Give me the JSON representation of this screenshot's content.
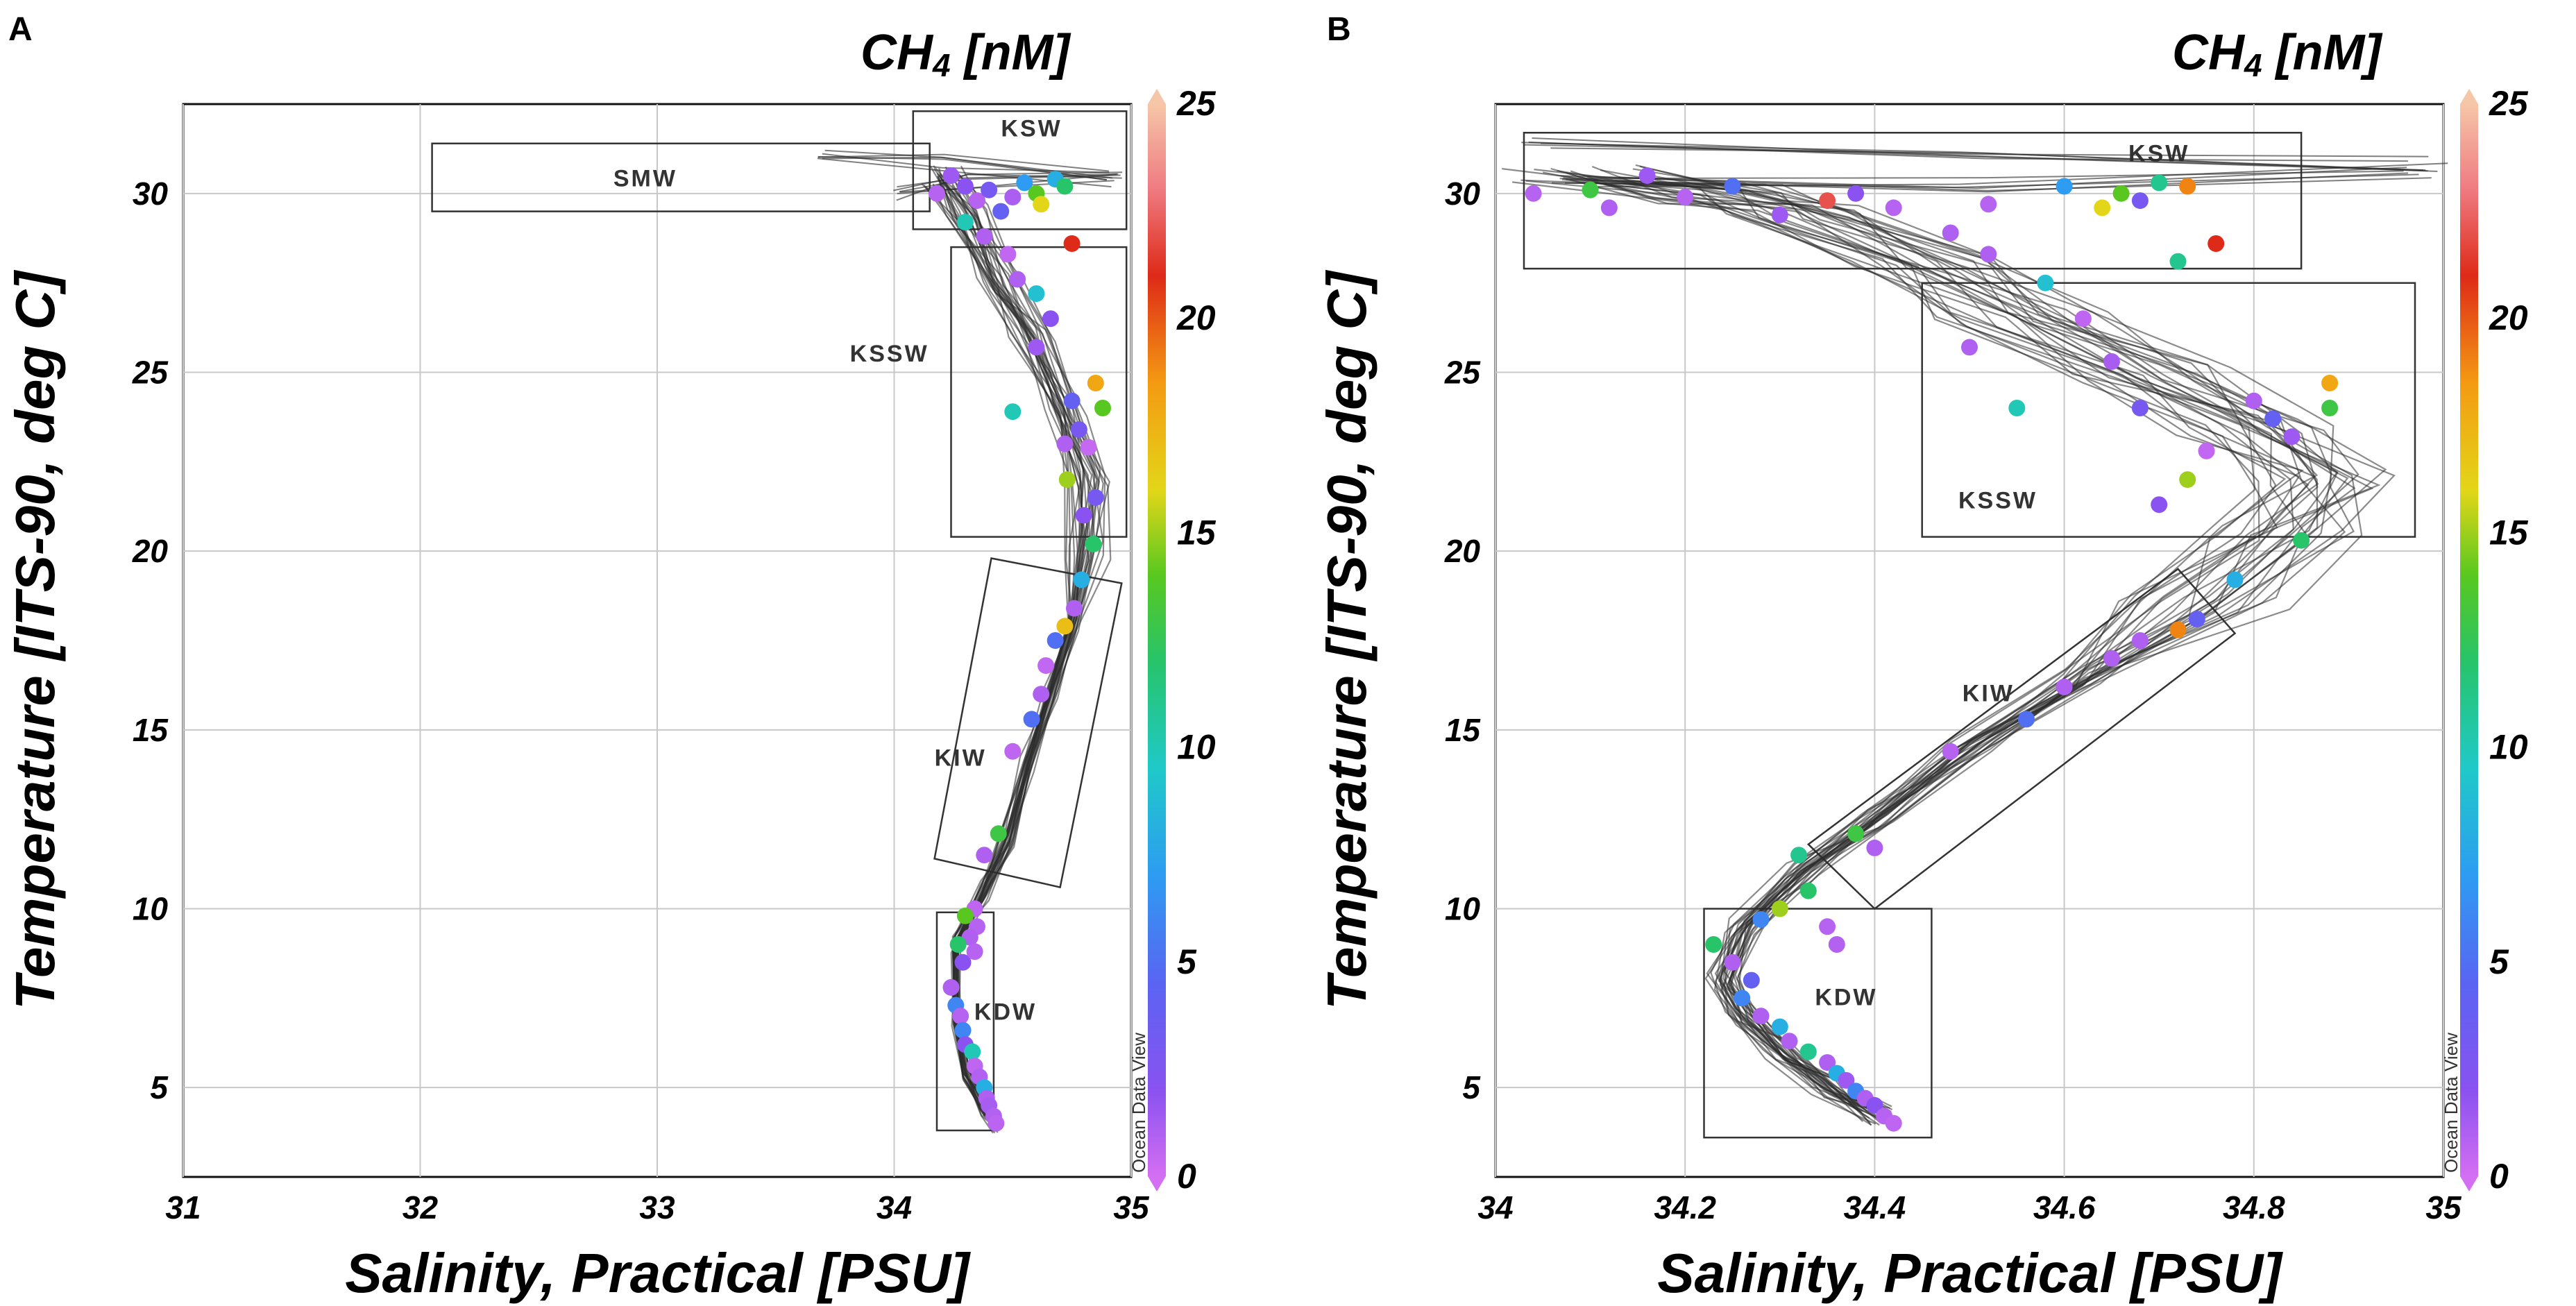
{
  "chart_data": [
    {
      "type": "scatter",
      "panel_letter": "A",
      "title": "CH4 [nM]",
      "title_main": "CH",
      "title_sub": "4",
      "title_unit": " [nM]",
      "xlabel": "Salinity, Practical [PSU]",
      "ylabel": "Temperature [ITS-90, deg C]",
      "xlim": [
        31,
        35
      ],
      "ylim": [
        2.5,
        32.5
      ],
      "xticks": [
        "31",
        "32",
        "33",
        "34",
        "35"
      ],
      "yticks": [
        "5",
        "10",
        "15",
        "20",
        "25",
        "30"
      ],
      "colorbar": {
        "min": 0,
        "max": 25,
        "ticks": [
          "0",
          "5",
          "10",
          "15",
          "20",
          "25"
        ],
        "watermark": "Ocean Data View"
      },
      "regions": [
        {
          "name": "SMW",
          "corners": [
            [
              32.05,
              29.5
            ],
            [
              34.15,
              29.5
            ],
            [
              34.15,
              31.4
            ],
            [
              32.05,
              31.4
            ]
          ],
          "label_pos": [
            32.95,
            30.2
          ]
        },
        {
          "name": "KSW",
          "corners": [
            [
              34.08,
              29.0
            ],
            [
              34.98,
              29.0
            ],
            [
              34.98,
              32.3
            ],
            [
              34.08,
              32.3
            ]
          ],
          "label_pos": [
            34.58,
            31.6
          ]
        },
        {
          "name": "KSSW",
          "corners": [
            [
              34.24,
              20.4
            ],
            [
              34.98,
              20.4
            ],
            [
              34.98,
              28.5
            ],
            [
              34.24,
              28.5
            ]
          ],
          "label_pos": [
            33.98,
            25.3
          ]
        },
        {
          "name": "KIW",
          "corners": [
            [
              34.7,
              10.6
            ],
            [
              34.96,
              19.1
            ],
            [
              34.41,
              19.8
            ],
            [
              34.17,
              11.4
            ]
          ],
          "label_pos": [
            34.28,
            14.0
          ]
        },
        {
          "name": "KDW",
          "corners": [
            [
              34.18,
              3.8
            ],
            [
              34.42,
              3.8
            ],
            [
              34.42,
              9.9
            ],
            [
              34.18,
              9.9
            ]
          ],
          "label_pos": [
            34.47,
            6.9
          ]
        }
      ],
      "profile_path": [
        [
          34.2,
          30.5
        ],
        [
          34.3,
          29.4
        ],
        [
          34.45,
          27.5
        ],
        [
          34.58,
          26.0
        ],
        [
          34.72,
          24.0
        ],
        [
          34.82,
          22.0
        ],
        [
          34.82,
          20.0
        ],
        [
          34.76,
          18.0
        ],
        [
          34.66,
          16.0
        ],
        [
          34.56,
          14.0
        ],
        [
          34.48,
          12.0
        ],
        [
          34.38,
          10.5
        ],
        [
          34.26,
          9.0
        ],
        [
          34.26,
          7.0
        ],
        [
          34.3,
          5.5
        ],
        [
          34.38,
          4.5
        ],
        [
          34.43,
          4.0
        ]
      ],
      "upper_streaks": [
        [
          [
            33.7,
            31.2
          ],
          [
            34.2,
            30.9
          ],
          [
            34.9,
            30.4
          ]
        ],
        [
          [
            34.0,
            30.0
          ],
          [
            34.3,
            30.3
          ],
          [
            34.95,
            30.5
          ]
        ]
      ],
      "points": [
        [
          34.18,
          30.0,
          0.8
        ],
        [
          34.24,
          30.5,
          1.5
        ],
        [
          34.3,
          30.2,
          2.0
        ],
        [
          34.35,
          29.8,
          0.8
        ],
        [
          34.4,
          30.1,
          3.0
        ],
        [
          34.45,
          29.5,
          4.0
        ],
        [
          34.5,
          29.9,
          1.1
        ],
        [
          34.55,
          30.3,
          7.0
        ],
        [
          34.6,
          30.0,
          14.0
        ],
        [
          34.62,
          29.7,
          16.0
        ],
        [
          34.68,
          30.4,
          8.0
        ],
        [
          34.72,
          30.2,
          12.0
        ],
        [
          34.3,
          29.2,
          10.0
        ],
        [
          34.38,
          28.8,
          1.0
        ],
        [
          34.48,
          28.3,
          0.5
        ],
        [
          34.75,
          28.6,
          21.0
        ],
        [
          34.52,
          27.6,
          1.0
        ],
        [
          34.6,
          27.2,
          9.0
        ],
        [
          34.66,
          26.5,
          2.0
        ],
        [
          34.6,
          25.7,
          1.5
        ],
        [
          34.75,
          24.2,
          4.0
        ],
        [
          34.85,
          24.7,
          18.0
        ],
        [
          34.88,
          24.0,
          14.0
        ],
        [
          34.5,
          23.9,
          10.0
        ],
        [
          34.72,
          23.0,
          1.0
        ],
        [
          34.78,
          23.4,
          3.0
        ],
        [
          34.82,
          22.9,
          0.4
        ],
        [
          34.73,
          22.0,
          15.0
        ],
        [
          34.85,
          21.5,
          3.0
        ],
        [
          34.8,
          21.0,
          2.0
        ],
        [
          34.84,
          20.2,
          12.0
        ],
        [
          34.79,
          19.2,
          8.0
        ],
        [
          34.76,
          18.4,
          1.0
        ],
        [
          34.72,
          17.9,
          17.0
        ],
        [
          34.68,
          17.5,
          5.0
        ],
        [
          34.64,
          16.8,
          0.5
        ],
        [
          34.62,
          16.0,
          1.0
        ],
        [
          34.58,
          15.3,
          5.0
        ],
        [
          34.5,
          14.4,
          0.6
        ],
        [
          34.44,
          12.1,
          13.0
        ],
        [
          34.38,
          11.5,
          1.0
        ],
        [
          34.34,
          10.0,
          0.6
        ],
        [
          34.3,
          9.8,
          14.0
        ],
        [
          34.35,
          9.5,
          0.8
        ],
        [
          34.32,
          9.2,
          1.0
        ],
        [
          34.27,
          9.0,
          12.0
        ],
        [
          34.29,
          8.5,
          2.0
        ],
        [
          34.34,
          8.8,
          0.8
        ],
        [
          34.24,
          7.8,
          1.0
        ],
        [
          34.26,
          7.3,
          6.0
        ],
        [
          34.28,
          7.0,
          0.8
        ],
        [
          34.29,
          6.6,
          6.0
        ],
        [
          34.3,
          6.2,
          2.0
        ],
        [
          34.33,
          6.0,
          10.0
        ],
        [
          34.34,
          5.6,
          0.6
        ],
        [
          34.36,
          5.3,
          0.9
        ],
        [
          34.38,
          5.0,
          8.0
        ],
        [
          34.39,
          4.7,
          1.0
        ],
        [
          34.4,
          4.5,
          1.2
        ],
        [
          34.42,
          4.2,
          0.9
        ],
        [
          34.43,
          4.0,
          0.7
        ]
      ]
    },
    {
      "type": "scatter",
      "panel_letter": "B",
      "title": "CH4 [nM]",
      "title_main": "CH",
      "title_sub": "4",
      "title_unit": " [nM]",
      "xlabel": "Salinity, Practical [PSU]",
      "ylabel": "Temperature [ITS-90, deg C]",
      "xlim": [
        34,
        35
      ],
      "ylim": [
        2.5,
        32.5
      ],
      "xticks": [
        "34",
        "34.2",
        "34.4",
        "34.6",
        "34.8",
        "35"
      ],
      "yticks": [
        "5",
        "10",
        "15",
        "20",
        "25",
        "30"
      ],
      "colorbar": {
        "min": 0,
        "max": 25,
        "ticks": [
          "0",
          "5",
          "10",
          "15",
          "20",
          "25"
        ],
        "watermark": "Ocean Data View"
      },
      "regions": [
        {
          "name": "KSW",
          "corners": [
            [
              34.03,
              27.9
            ],
            [
              34.85,
              27.9
            ],
            [
              34.85,
              31.7
            ],
            [
              34.03,
              31.7
            ]
          ],
          "label_pos": [
            34.7,
            30.9
          ]
        },
        {
          "name": "KSSW",
          "corners": [
            [
              34.45,
              20.4
            ],
            [
              34.97,
              20.4
            ],
            [
              34.97,
              27.5
            ],
            [
              34.45,
              27.5
            ]
          ],
          "label_pos": [
            34.53,
            21.2
          ]
        },
        {
          "name": "KIW",
          "corners": [
            [
              34.4,
              10.0
            ],
            [
              34.78,
              17.7
            ],
            [
              34.72,
              19.5
            ],
            [
              34.33,
              11.8
            ]
          ],
          "label_pos": [
            34.52,
            15.8
          ]
        },
        {
          "name": "KDW",
          "corners": [
            [
              34.22,
              3.6
            ],
            [
              34.46,
              3.6
            ],
            [
              34.46,
              10.0
            ],
            [
              34.22,
              10.0
            ]
          ],
          "label_pos": [
            34.37,
            7.3
          ]
        }
      ],
      "profile_path": [
        [
          34.08,
          30.5
        ],
        [
          34.22,
          30.0
        ],
        [
          34.32,
          29.4
        ],
        [
          34.45,
          28.0
        ],
        [
          34.55,
          26.5
        ],
        [
          34.68,
          25.0
        ],
        [
          34.8,
          23.5
        ],
        [
          34.86,
          22.0
        ],
        [
          34.82,
          20.5
        ],
        [
          34.74,
          18.5
        ],
        [
          34.62,
          16.5
        ],
        [
          34.5,
          14.5
        ],
        [
          34.4,
          12.5
        ],
        [
          34.32,
          11.0
        ],
        [
          34.26,
          9.5
        ],
        [
          34.24,
          8.0
        ],
        [
          34.26,
          7.0
        ],
        [
          34.3,
          6.0
        ],
        [
          34.35,
          5.0
        ],
        [
          34.4,
          4.2
        ]
      ],
      "upper_streaks": [
        [
          [
            34.05,
            31.3
          ],
          [
            34.5,
            31.0
          ],
          [
            34.98,
            30.8
          ]
        ],
        [
          [
            34.08,
            30.4
          ],
          [
            34.5,
            30.2
          ],
          [
            34.98,
            30.6
          ]
        ]
      ],
      "points": [
        [
          34.04,
          30.0,
          0.8
        ],
        [
          34.1,
          30.1,
          13.0
        ],
        [
          34.12,
          29.6,
          1.0
        ],
        [
          34.16,
          30.5,
          1.5
        ],
        [
          34.2,
          29.9,
          0.8
        ],
        [
          34.25,
          30.2,
          5.0
        ],
        [
          34.3,
          29.4,
          1.5
        ],
        [
          34.35,
          29.8,
          22.0
        ],
        [
          34.38,
          30.0,
          2.0
        ],
        [
          34.42,
          29.6,
          0.8
        ],
        [
          34.48,
          28.9,
          1.0
        ],
        [
          34.52,
          29.7,
          0.8
        ],
        [
          34.6,
          30.2,
          7.0
        ],
        [
          34.64,
          29.6,
          16.0
        ],
        [
          34.66,
          30.0,
          14.0
        ],
        [
          34.7,
          30.3,
          11.0
        ],
        [
          34.68,
          29.8,
          3.0
        ],
        [
          34.73,
          30.2,
          19.0
        ],
        [
          34.76,
          28.6,
          21.0
        ],
        [
          34.72,
          28.1,
          11.0
        ],
        [
          34.52,
          28.3,
          1.0
        ],
        [
          34.58,
          27.5,
          9.0
        ],
        [
          34.62,
          26.5,
          0.6
        ],
        [
          34.5,
          25.7,
          1.0
        ],
        [
          34.65,
          25.3,
          1.2
        ],
        [
          34.68,
          24.0,
          3.0
        ],
        [
          34.55,
          24.0,
          10.0
        ],
        [
          34.8,
          24.2,
          1.0
        ],
        [
          34.82,
          23.7,
          4.0
        ],
        [
          34.88,
          24.7,
          18.0
        ],
        [
          34.88,
          24.0,
          13.0
        ],
        [
          34.84,
          23.2,
          1.5
        ],
        [
          34.75,
          22.8,
          0.5
        ],
        [
          34.73,
          22.0,
          15.0
        ],
        [
          34.7,
          21.3,
          2.0
        ],
        [
          34.85,
          20.3,
          12.0
        ],
        [
          34.78,
          19.2,
          8.0
        ],
        [
          34.74,
          18.1,
          4.0
        ],
        [
          34.72,
          17.8,
          19.0
        ],
        [
          34.68,
          17.5,
          1.0
        ],
        [
          34.65,
          17.0,
          1.0
        ],
        [
          34.6,
          16.2,
          1.0
        ],
        [
          34.56,
          15.3,
          5.0
        ],
        [
          34.48,
          14.4,
          0.8
        ],
        [
          34.38,
          12.1,
          13.0
        ],
        [
          34.4,
          11.7,
          1.0
        ],
        [
          34.32,
          11.5,
          11.0
        ],
        [
          34.33,
          10.5,
          12.0
        ],
        [
          34.3,
          10.0,
          15.0
        ],
        [
          34.28,
          9.7,
          6.0
        ],
        [
          34.35,
          9.5,
          0.8
        ],
        [
          34.36,
          9.0,
          0.9
        ],
        [
          34.23,
          9.0,
          12.0
        ],
        [
          34.25,
          8.5,
          1.0
        ],
        [
          34.27,
          8.0,
          4.0
        ],
        [
          34.26,
          7.5,
          6.0
        ],
        [
          34.28,
          7.0,
          1.0
        ],
        [
          34.3,
          6.7,
          8.0
        ],
        [
          34.31,
          6.3,
          1.0
        ],
        [
          34.33,
          6.0,
          11.0
        ],
        [
          34.35,
          5.7,
          1.0
        ],
        [
          34.36,
          5.4,
          8.0
        ],
        [
          34.37,
          5.2,
          1.5
        ],
        [
          34.38,
          4.9,
          6.0
        ],
        [
          34.39,
          4.7,
          1.0
        ],
        [
          34.4,
          4.5,
          2.0
        ],
        [
          34.41,
          4.2,
          0.8
        ],
        [
          34.42,
          4.0,
          0.6
        ]
      ]
    }
  ]
}
